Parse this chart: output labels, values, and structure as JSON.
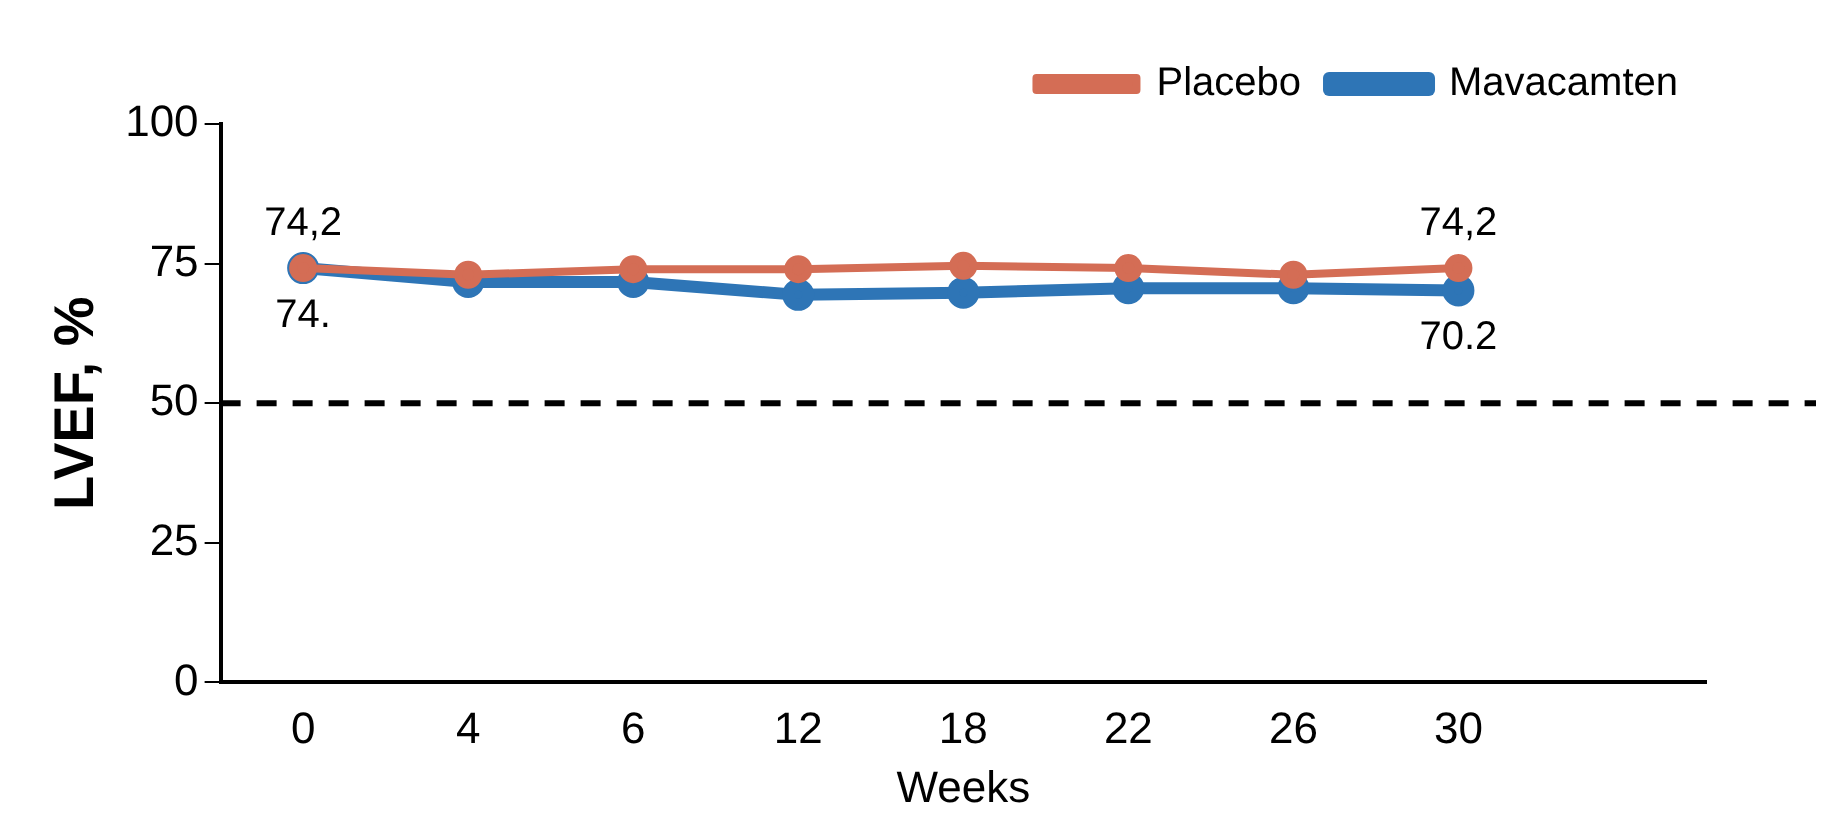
{
  "chart_data": {
    "type": "line",
    "xlabel": "Weeks",
    "ylabel": "LVEF, %",
    "categories": [
      "0",
      "4",
      "6",
      "12",
      "18",
      "22",
      "26",
      "30",
      null
    ],
    "series": [
      {
        "name": "Mavacamten",
        "color": "#2e75b6",
        "values": [
          74.2,
          71.7,
          71.7,
          69.4,
          69.8,
          70.6,
          70.6,
          70.2,
          null
        ],
        "value_labels": [
          "74.",
          null,
          null,
          null,
          null,
          null,
          null,
          "70.2",
          null
        ]
      },
      {
        "name": "Placebo",
        "color": "#d46d55",
        "values": [
          74.2,
          73,
          74,
          74,
          74.6,
          74.2,
          73,
          74.2,
          null
        ],
        "value_labels": [
          "74,2",
          null,
          null,
          null,
          null,
          null,
          null,
          "74,2",
          null
        ]
      }
    ],
    "ylim": [
      0,
      100
    ],
    "yticks": [
      0,
      25,
      50,
      75,
      100
    ],
    "grid": false,
    "legend": "top right",
    "marker": "circle",
    "line_style": "solid",
    "ref_lines": [
      {
        "axis": "y",
        "value": 50,
        "color": "#000000",
        "line_style": "dashed"
      }
    ]
  }
}
